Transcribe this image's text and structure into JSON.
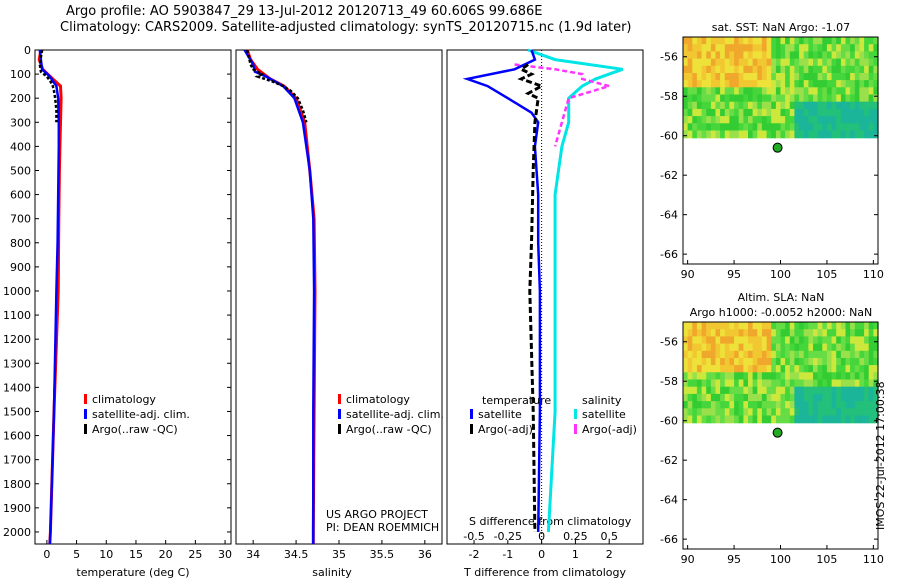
{
  "title_line1": "Argo profile: AO 5903847_29 13-Jul-2012 20120713_49 60.606S 99.686E",
  "title_line2": "Climatology: CARS2009. Satellite-adjusted climatology: synTS_20120715.nc (1.9d later)",
  "credit": {
    "line1": "US ARGO PROJECT",
    "line2": "PI: DEAN ROEMMICH"
  },
  "stamp": "IMOS 22-Jul-2012 17:00:38",
  "colors": {
    "climatology": "#ff0000",
    "satellite": "#0000ff",
    "argo": "#000000",
    "sal_satellite": "#00e5e5",
    "sal_argo": "#ff33ff"
  },
  "chart_data": [
    {
      "id": "temperature",
      "type": "line",
      "xlabel": "temperature (deg C)",
      "ylabel": "",
      "xlim": [
        -2,
        31
      ],
      "ylim": [
        2050,
        0
      ],
      "xticks": [
        "0",
        "5",
        "10",
        "15",
        "20",
        "25",
        "30"
      ],
      "yticks": [
        "0",
        "100",
        "200",
        "300",
        "400",
        "500",
        "600",
        "700",
        "800",
        "900",
        "1000",
        "1100",
        "1200",
        "1300",
        "1400",
        "1500",
        "1600",
        "1700",
        "1800",
        "1900",
        "2000"
      ],
      "legend": [
        "climatology",
        "satellite-adj. clim.",
        "Argo(..raw -QC)"
      ],
      "series": [
        {
          "name": "climatology",
          "depth": [
            0,
            40,
            80,
            120,
            150,
            200,
            300,
            400,
            500,
            700,
            1000,
            1500,
            2000,
            2050
          ],
          "values": [
            -1.0,
            -1.3,
            -0.7,
            1.0,
            2.3,
            2.4,
            2.3,
            2.2,
            2.1,
            2.0,
            1.9,
            1.2,
            0.6,
            0.5
          ]
        },
        {
          "name": "satellite-adj. clim.",
          "depth": [
            0,
            40,
            80,
            110,
            150,
            200,
            300,
            400,
            600,
            800,
            1000,
            1500,
            2000,
            2050
          ],
          "values": [
            -1.2,
            -1.0,
            -0.8,
            0.5,
            1.6,
            1.9,
            2.0,
            2.0,
            1.9,
            1.8,
            1.6,
            1.2,
            0.6,
            0.5
          ]
        },
        {
          "name": "Argo(..raw -QC)",
          "depth": [
            0,
            30,
            60,
            90,
            110,
            130,
            150,
            170,
            200,
            250,
            300
          ],
          "values": [
            -0.8,
            -1.0,
            -1.2,
            -1.0,
            0.0,
            0.6,
            1.0,
            1.2,
            1.4,
            1.6,
            1.6
          ]
        }
      ]
    },
    {
      "id": "salinity",
      "type": "line",
      "xlabel": "salinity",
      "ylabel": "",
      "xlim": [
        33.8,
        36.2
      ],
      "ylim": [
        2050,
        0
      ],
      "xticks": [
        "34",
        "34.5",
        "35",
        "35.5",
        "36"
      ],
      "legend": [
        "climatology",
        "satellite-adj. clim.",
        "Argo(..raw -QC)"
      ],
      "series": [
        {
          "name": "climatology",
          "depth": [
            0,
            40,
            80,
            120,
            150,
            200,
            300,
            500,
            700,
            1000,
            1500,
            2000,
            2050
          ],
          "values": [
            33.93,
            33.97,
            34.05,
            34.2,
            34.36,
            34.5,
            34.6,
            34.66,
            34.71,
            34.72,
            34.71,
            34.7,
            34.7
          ]
        },
        {
          "name": "satellite-adj. clim.",
          "depth": [
            0,
            30,
            60,
            90,
            110,
            150,
            200,
            300,
            500,
            700,
            1000,
            1500,
            2000,
            2050
          ],
          "values": [
            33.9,
            33.95,
            34.0,
            34.02,
            34.15,
            34.35,
            34.48,
            34.58,
            34.66,
            34.7,
            34.71,
            34.7,
            34.7,
            34.7
          ]
        },
        {
          "name": "Argo(..raw -QC)",
          "depth": [
            0,
            60,
            80,
            100,
            110,
            130,
            150,
            170,
            200,
            250,
            300
          ],
          "values": [
            33.93,
            33.97,
            34.0,
            34.1,
            34.05,
            34.22,
            34.35,
            34.44,
            34.52,
            34.58,
            34.62
          ]
        }
      ]
    },
    {
      "id": "differences",
      "type": "line",
      "xlabel": "T difference from climatology",
      "top_label": "S difference from climatology",
      "xlim": [
        -2.8,
        3.0
      ],
      "ylim": [
        2050,
        0
      ],
      "xticks": [
        "-2",
        "-1",
        "0",
        "1",
        "2"
      ],
      "sticks": [
        "-0.5",
        "-0.25",
        "0",
        "0.25",
        "0.5"
      ],
      "legend": [
        "temperature",
        "satellite",
        "Argo(-adj)",
        "salinity",
        "satellite",
        "Argo(-adj)"
      ],
      "series": [
        {
          "name": "T satellite",
          "depth": [
            0,
            40,
            80,
            120,
            150,
            200,
            260,
            300,
            400,
            600,
            800,
            1000,
            1500,
            2000
          ],
          "values": [
            -0.3,
            -0.2,
            -0.8,
            -2.2,
            -1.6,
            -1.0,
            -0.3,
            -0.1,
            -0.2,
            -0.1,
            -0.1,
            -0.05,
            -0.05,
            -0.1
          ]
        },
        {
          "name": "T Argo(-adj)",
          "depth": [
            60,
            80,
            100,
            120,
            150,
            180,
            200,
            300,
            500,
            800,
            1000,
            1500,
            2000
          ],
          "values": [
            -0.4,
            -0.6,
            -0.3,
            -0.6,
            0.0,
            -0.4,
            -0.1,
            -0.2,
            -0.25,
            -0.3,
            -0.35,
            -0.25,
            -0.2
          ]
        },
        {
          "name": "S satellite",
          "depth": [
            0,
            40,
            80,
            100,
            120,
            150,
            200,
            300,
            400,
            600,
            1000,
            1500,
            2000
          ],
          "values": [
            -0.1,
            0.1,
            0.6,
            0.5,
            0.4,
            0.3,
            0.2,
            0.2,
            0.15,
            0.1,
            0.1,
            0.1,
            0.05
          ]
        },
        {
          "name": "S Argo(-adj)",
          "depth": [
            60,
            80,
            100,
            120,
            150,
            200,
            300,
            400
          ],
          "values": [
            -0.2,
            0.1,
            0.3,
            0.3,
            0.5,
            0.2,
            0.15,
            0.1
          ]
        }
      ]
    },
    {
      "id": "sst_map",
      "type": "heatmap",
      "title": "sat. SST: NaN Argo: -1.07",
      "xlim": [
        89.5,
        110.5
      ],
      "ylim": [
        -66.5,
        -55
      ],
      "xticks": [
        "90",
        "95",
        "100",
        "105",
        "110"
      ],
      "yticks": [
        "-56",
        "-58",
        "-60",
        "-62",
        "-64",
        "-66"
      ],
      "data_extent_lat": [
        -60.1,
        -55
      ],
      "marker": {
        "lon": 99.686,
        "lat": -60.606
      }
    },
    {
      "id": "sla_map",
      "type": "heatmap",
      "title": "Altim. SLA: NaN",
      "title2": "Argo h1000: -0.0052 h2000: NaN",
      "xlim": [
        89.5,
        110.5
      ],
      "ylim": [
        -66.5,
        -55
      ],
      "xticks": [
        "90",
        "95",
        "100",
        "105",
        "110"
      ],
      "yticks": [
        "-56",
        "-58",
        "-60",
        "-62",
        "-64",
        "-66"
      ],
      "data_extent_lat": [
        -60.1,
        -55
      ],
      "marker": {
        "lon": 99.686,
        "lat": -60.606
      }
    }
  ]
}
